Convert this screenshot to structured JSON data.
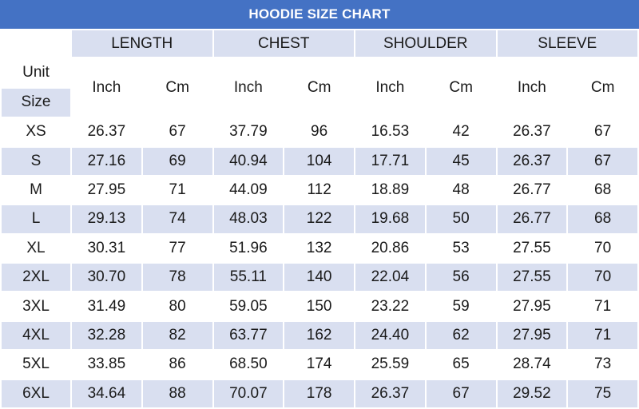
{
  "title": "HOODIE SIZE CHART",
  "header": {
    "unit_label": "Unit",
    "size_label": "Size",
    "groups": [
      "LENGTH",
      "CHEST",
      "SHOULDER",
      "SLEEVE"
    ],
    "units": [
      "Inch",
      "Cm",
      "Inch",
      "Cm",
      "Inch",
      "Cm",
      "Inch",
      "Cm"
    ]
  },
  "rows": [
    {
      "size": "XS",
      "values": [
        "26.37",
        "67",
        "37.79",
        "96",
        "16.53",
        "42",
        "26.37",
        "67"
      ]
    },
    {
      "size": "S",
      "values": [
        "27.16",
        "69",
        "40.94",
        "104",
        "17.71",
        "45",
        "26.37",
        "67"
      ]
    },
    {
      "size": "M",
      "values": [
        "27.95",
        "71",
        "44.09",
        "112",
        "18.89",
        "48",
        "26.77",
        "68"
      ]
    },
    {
      "size": "L",
      "values": [
        "29.13",
        "74",
        "48.03",
        "122",
        "19.68",
        "50",
        "26.77",
        "68"
      ]
    },
    {
      "size": "XL",
      "values": [
        "30.31",
        "77",
        "51.96",
        "132",
        "20.86",
        "53",
        "27.55",
        "70"
      ]
    },
    {
      "size": "2XL",
      "values": [
        "30.70",
        "78",
        "55.11",
        "140",
        "22.04",
        "56",
        "27.55",
        "70"
      ]
    },
    {
      "size": "3XL",
      "values": [
        "31.49",
        "80",
        "59.05",
        "150",
        "23.22",
        "59",
        "27.95",
        "71"
      ]
    },
    {
      "size": "4XL",
      "values": [
        "32.28",
        "82",
        "63.77",
        "162",
        "24.40",
        "62",
        "27.95",
        "71"
      ]
    },
    {
      "size": "5XL",
      "values": [
        "33.85",
        "86",
        "68.50",
        "174",
        "25.59",
        "65",
        "28.74",
        "73"
      ]
    },
    {
      "size": "6XL",
      "values": [
        "34.64",
        "88",
        "70.07",
        "178",
        "26.37",
        "67",
        "29.52",
        "75"
      ]
    }
  ],
  "colors": {
    "title_bg": "#4472c4",
    "title_text": "#ffffff",
    "shaded_cell": "#d9dff0",
    "light_cell": "#ffffff"
  }
}
